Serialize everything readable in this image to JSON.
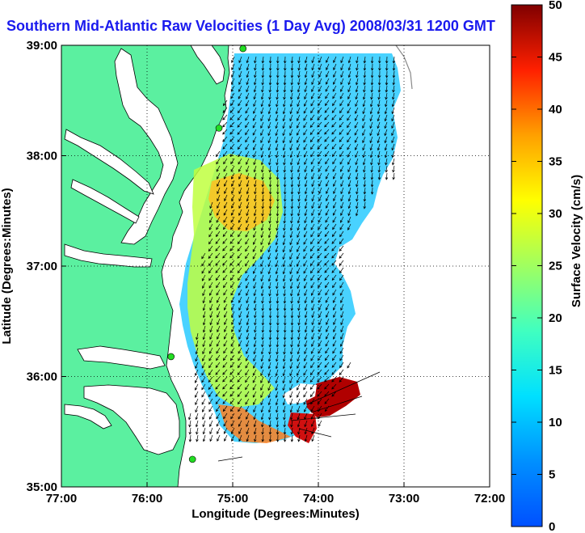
{
  "title": "Southern Mid-Atlantic Raw Velocities (1 Day Avg) 2008/03/31 1200 GMT",
  "map": {
    "xlabel": "Longitude (Degrees:Minutes)",
    "ylabel": "Latitude (Degrees:Minutes)",
    "x_ticks": [
      "77:00",
      "76:00",
      "75:00",
      "74:00",
      "73:00",
      "72:00"
    ],
    "y_ticks": [
      "39:00",
      "38:00",
      "37:00",
      "36:00",
      "35:00"
    ],
    "x_range": [
      -77,
      -72
    ],
    "y_range": [
      35,
      39
    ],
    "grid": "dotted",
    "colors": {
      "land": "#5bf0a0",
      "water": "#ffffff",
      "frame": "#000000"
    }
  },
  "colorbar": {
    "label": "Surface Velocity (cm/s)",
    "ticks": [
      "50",
      "45",
      "40",
      "35",
      "30",
      "25",
      "20",
      "15",
      "10",
      "5",
      "0"
    ],
    "range": [
      0,
      50
    ],
    "colormap": "jet"
  },
  "stations": [
    {
      "lon": -74.88,
      "lat": 38.97,
      "color": "#22dd22"
    },
    {
      "lon": -75.16,
      "lat": 38.25,
      "color": "#22dd22"
    },
    {
      "lon": -75.72,
      "lat": 36.18,
      "color": "#22dd22"
    },
    {
      "lon": -75.47,
      "lat": 35.25,
      "color": "#22dd22"
    }
  ]
}
